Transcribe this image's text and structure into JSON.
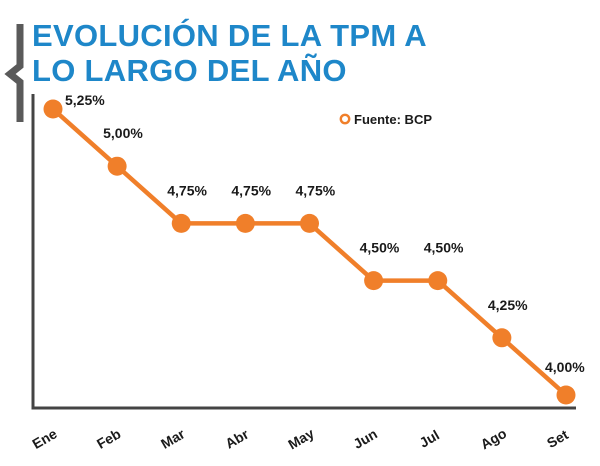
{
  "title_lines": [
    "EVOLUCIÓN DE LA TPM A",
    "LO LARGO DEL AÑO"
  ],
  "legend": {
    "label": "Fuente: BCP"
  },
  "colors": {
    "series": "#f07f2a",
    "title": "#1e87c9",
    "axis": "#444444",
    "bracket": "#5a5a5a"
  },
  "chart_data": {
    "type": "line",
    "title": "EVOLUCIÓN DE LA TPM A LO LARGO DEL AÑO",
    "categories": [
      "Ene",
      "Feb",
      "Mar",
      "Abr",
      "May",
      "Jun",
      "Jul",
      "Ago",
      "Set"
    ],
    "series": [
      {
        "values": [
          5.25,
          5.0,
          4.75,
          4.75,
          4.75,
          4.5,
          4.5,
          4.25,
          4.0
        ]
      }
    ],
    "data_labels": [
      "5,25%",
      "5,00%",
      "4,75%",
      "4,75%",
      "4,75%",
      "4,50%",
      "4,50%",
      "4,25%",
      "4,00%"
    ],
    "xlabel": "",
    "ylabel": "",
    "ylim": [
      3.9,
      5.3
    ],
    "grid": false,
    "legend_position": "top-right"
  }
}
